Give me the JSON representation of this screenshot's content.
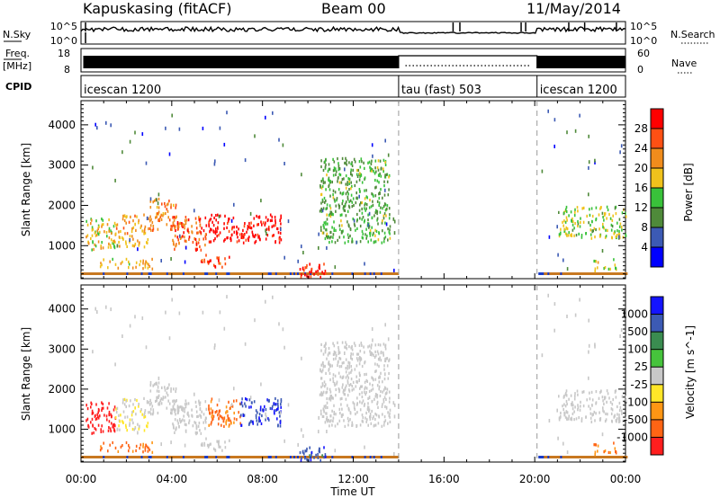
{
  "header": {
    "station": "Kapuskasing (fitACF)",
    "beam": "Beam 00",
    "date": "11/May/2014"
  },
  "strips": {
    "nsky_label": "N.Sky",
    "nsky_ticks": [
      "10^5",
      "10^0"
    ],
    "nsearch_label": "N.Search",
    "nsearch_ticks": [
      "10^5",
      "10^0"
    ],
    "freq_label_1": "Freq.",
    "freq_label_2": "[MHz]",
    "freq_ticks": [
      "18",
      "8"
    ],
    "nave_label": "Nave",
    "nave_ticks": [
      "60",
      "0"
    ],
    "cpid_label": "CPID",
    "cpid_segments": [
      {
        "name": "icescan 1200",
        "start": 0,
        "end": 14
      },
      {
        "name": "tau (fast) 503",
        "start": 14,
        "end": 20.1
      },
      {
        "name": "icescan 1200",
        "start": 20.1,
        "end": 24
      }
    ]
  },
  "colors": {
    "power": [
      "#0000ff",
      "#3c5ab4",
      "#4f8a3a",
      "#39c23a",
      "#f0c21c",
      "#f08c1c",
      "#ff5014",
      "#ff0000"
    ],
    "velocity_pos": [
      "#1414ff",
      "#3c5ab4",
      "#3a8c50",
      "#46c33c"
    ],
    "velocity_neg": [
      "#ffe628",
      "#ff9614",
      "#ff6414",
      "#ff1e1e"
    ],
    "velocity_mid": "#c8c8c8",
    "ground": "#c87820"
  },
  "chart_data": [
    {
      "type": "heatmap",
      "panel": "power",
      "ylabel": "Slant Range [km]",
      "xlabel": "",
      "xlim": [
        0,
        24
      ],
      "ylim": [
        180,
        4600
      ],
      "xticks": [
        "00:00",
        "04:00",
        "08:00",
        "12:00",
        "16:00",
        "20:00",
        "00:00"
      ],
      "yticks": [
        1000,
        2000,
        3000,
        4000
      ],
      "colorbar_title": "Power [dB]",
      "colorbar_ticks": [
        "4",
        "8",
        "12",
        "16",
        "20",
        "24",
        "28"
      ],
      "scatter_regions": [
        {
          "t": [
            0.2,
            1.5
          ],
          "r": [
            900,
            1700
          ],
          "level": 4.0
        },
        {
          "t": [
            1.5,
            3.0
          ],
          "r": [
            1000,
            1800
          ],
          "level": 4.6
        },
        {
          "t": [
            3.0,
            4.2
          ],
          "r": [
            1400,
            2200
          ],
          "level": 5.4
        },
        {
          "t": [
            4.0,
            5.5
          ],
          "r": [
            900,
            1800
          ],
          "level": 5.8
        },
        {
          "t": [
            5.6,
            8.8
          ],
          "r": [
            1100,
            1800
          ],
          "level": 7.2
        },
        {
          "t": [
            5.2,
            6.6
          ],
          "r": [
            500,
            800
          ],
          "level": 6.2
        },
        {
          "t": [
            0.8,
            3.2
          ],
          "r": [
            450,
            700
          ],
          "level": 4.4
        },
        {
          "t": [
            9.6,
            10.8
          ],
          "r": [
            250,
            600
          ],
          "level": 7.0
        },
        {
          "t": [
            10.5,
            13.6
          ],
          "r": [
            1100,
            3200
          ],
          "level": 2.6
        },
        {
          "t": [
            21.0,
            24.0
          ],
          "r": [
            1200,
            2000
          ],
          "level": 3.4
        },
        {
          "t": [
            22.5,
            23.6
          ],
          "r": [
            400,
            700
          ],
          "level": 3.6
        }
      ]
    },
    {
      "type": "heatmap",
      "panel": "velocity",
      "ylabel": "Slant Range [km]",
      "xlabel": "Time UT",
      "xlim": [
        0,
        24
      ],
      "ylim": [
        180,
        4600
      ],
      "xticks": [
        "00:00",
        "04:00",
        "08:00",
        "12:00",
        "16:00",
        "20:00",
        "00:00"
      ],
      "yticks": [
        1000,
        2000,
        3000,
        4000
      ],
      "colorbar_title": "Velocity [m s^-1]",
      "colorbar_ticks": [
        "1000",
        "500",
        "100",
        "25",
        "-25",
        "-100",
        "-500",
        "-1000"
      ],
      "scatter_regions": [
        {
          "t": [
            0.2,
            1.5
          ],
          "r": [
            900,
            1700
          ],
          "level": -8.0
        },
        {
          "t": [
            1.5,
            3.0
          ],
          "r": [
            1000,
            1800
          ],
          "level": -1.0
        },
        {
          "t": [
            3.0,
            4.2
          ],
          "r": [
            1400,
            2200
          ],
          "level": 0.0
        },
        {
          "t": [
            4.0,
            5.5
          ],
          "r": [
            900,
            1800
          ],
          "level": 0.0
        },
        {
          "t": [
            5.6,
            7.0
          ],
          "r": [
            1100,
            1800
          ],
          "level": -4.8
        },
        {
          "t": [
            7.0,
            8.8
          ],
          "r": [
            1100,
            1800
          ],
          "level": 3.0
        },
        {
          "t": [
            5.2,
            6.6
          ],
          "r": [
            500,
            800
          ],
          "level": 0.0
        },
        {
          "t": [
            0.8,
            3.2
          ],
          "r": [
            450,
            700
          ],
          "level": -5.0
        },
        {
          "t": [
            9.6,
            10.8
          ],
          "r": [
            250,
            600
          ],
          "level": 3.6
        },
        {
          "t": [
            10.5,
            13.6
          ],
          "r": [
            1100,
            3200
          ],
          "level": 0.0
        },
        {
          "t": [
            21.0,
            24.0
          ],
          "r": [
            1200,
            2000
          ],
          "level": 0.0
        },
        {
          "t": [
            22.5,
            23.6
          ],
          "r": [
            400,
            700
          ],
          "level": -4.6
        }
      ]
    }
  ]
}
